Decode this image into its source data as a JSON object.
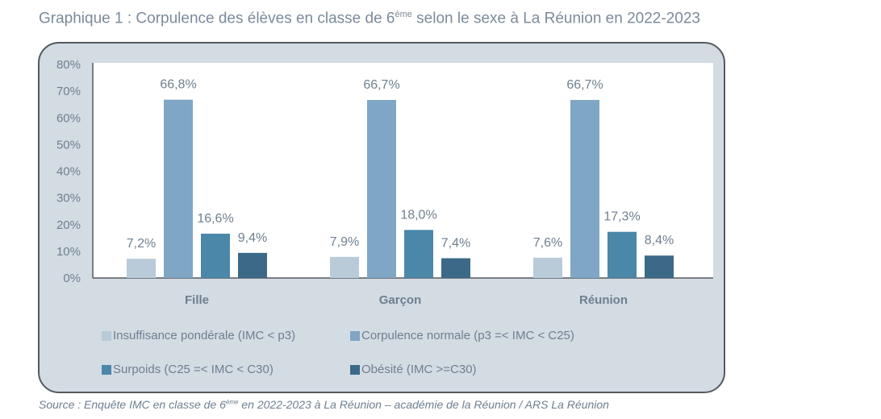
{
  "title": {
    "prefix": "Graphique 1 : Corpulence des élèves en classe de 6",
    "sup": "ème",
    "suffix": " selon le sexe à La Réunion en 2022-2023"
  },
  "source": {
    "prefix": "Source : Enquête IMC en classe de 6",
    "sup": "ème",
    "suffix": " en 2022-2023 à La Réunion – académie de la Réunion / ARS La Réunion"
  },
  "chart_data": {
    "type": "bar",
    "title": "Graphique 1 : Corpulence des élèves en classe de 6ème selon le sexe à La Réunion en 2022-2023",
    "categories": [
      "Fille",
      "Garçon",
      "Réunion"
    ],
    "ylim": [
      0,
      80
    ],
    "yticks": [
      "0%",
      "10%",
      "20%",
      "30%",
      "40%",
      "50%",
      "60%",
      "70%",
      "80%"
    ],
    "series": [
      {
        "name": "Insuffisance pondérale (IMC < p3)",
        "color": "#b9cad9",
        "values": [
          7.2,
          7.9,
          7.6
        ],
        "labels": [
          "7,2%",
          "7,9%",
          "7,6%"
        ]
      },
      {
        "name": "Corpulence normale (p3 =< IMC < C25)",
        "color": "#7fa6c4",
        "values": [
          66.8,
          66.7,
          66.7
        ],
        "labels": [
          "66,8%",
          "66,7%",
          "66,7%"
        ]
      },
      {
        "name": "Surpoids (C25 =< IMC < C30)",
        "color": "#4b87a9",
        "values": [
          16.6,
          18.0,
          17.3
        ],
        "labels": [
          "16,6%",
          "18,0%",
          "17,3%"
        ]
      },
      {
        "name": "Obésité (IMC >=C30)",
        "color": "#3b6987",
        "values": [
          9.4,
          7.4,
          8.4
        ],
        "labels": [
          "9,4%",
          "7,4%",
          "8,4%"
        ]
      }
    ],
    "legend_position": "bottom",
    "grid": false
  }
}
